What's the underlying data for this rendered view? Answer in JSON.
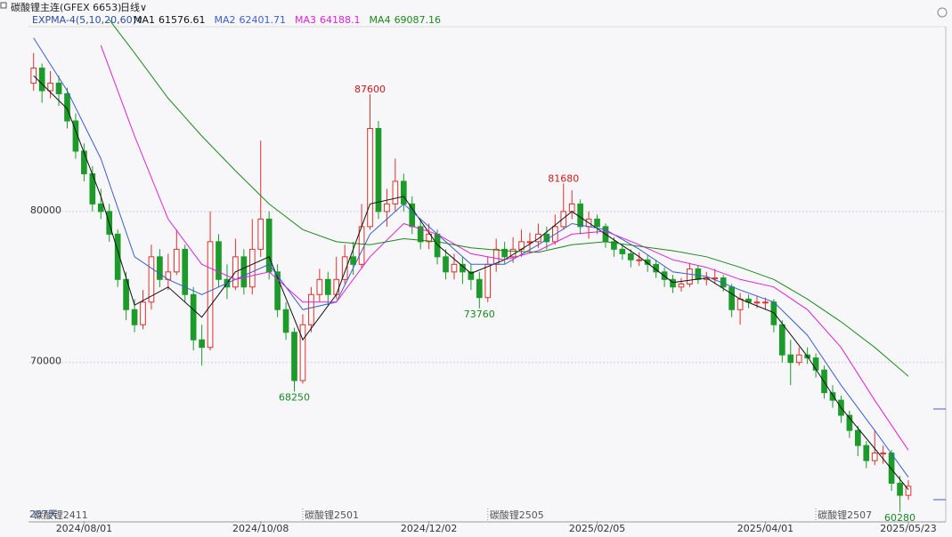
{
  "chart_data": {
    "type": "candlestick",
    "title": "碳酸锂主连(GFEX 6653)",
    "period": "日线∨",
    "indicator": "EXPMA-4(5,10,20,60)∨",
    "days_label": "207天",
    "categories": [
      null,
      null,
      null,
      null,
      null,
      null,
      "2024/08/01",
      null,
      null,
      null,
      null,
      null,
      null,
      null,
      null,
      null,
      null,
      null,
      null,
      null,
      null,
      null,
      null,
      null,
      null,
      null,
      null,
      "2024/10/08",
      null,
      null,
      null,
      null,
      null,
      null,
      null,
      null,
      null,
      null,
      null,
      null,
      null,
      null,
      null,
      null,
      null,
      null,
      null,
      "2024/12/02",
      null,
      null,
      null,
      null,
      null,
      null,
      null,
      null,
      null,
      null,
      null,
      null,
      null,
      null,
      null,
      null,
      null,
      null,
      null,
      "2025/02/05",
      null,
      null,
      null,
      null,
      null,
      null,
      null,
      null,
      null,
      null,
      null,
      null,
      null,
      null,
      null,
      null,
      null,
      null,
      null,
      "2025/04/01",
      null,
      null,
      null,
      null,
      null,
      null,
      null,
      null,
      null,
      null,
      null,
      null,
      null,
      null,
      null,
      null,
      "2025/05/23"
    ],
    "open": [
      88500,
      89500,
      88000,
      88500,
      87800,
      86000,
      84000,
      82500,
      80500,
      80000,
      78500,
      75500,
      73500,
      72500,
      74000,
      77000,
      75500,
      76000,
      77500,
      74500,
      71500,
      71000,
      78000,
      75500,
      75000,
      77000,
      75000,
      77500,
      79500,
      76000,
      73500,
      72000,
      68800,
      72500,
      74500,
      75500,
      74500,
      75500,
      77000,
      76500,
      79000,
      85500,
      80000,
      80500,
      82000,
      80500,
      79000,
      78000,
      78500,
      77000,
      76000,
      76500,
      76000,
      75500,
      74300,
      76500,
      77500,
      77000,
      77500,
      78000,
      78000,
      78500,
      78000,
      79000,
      80000,
      80500,
      79000,
      79500,
      79000,
      78000,
      77500,
      77200,
      76800,
      76800,
      76500,
      76000,
      75500,
      75000,
      75200,
      76200,
      75500,
      75600,
      75600,
      75000,
      73500,
      74200,
      74000,
      74000,
      74000,
      72500,
      70500,
      70000,
      70500,
      70300,
      69500,
      68000,
      67500,
      66500,
      65500,
      64500,
      63500,
      64000,
      64000,
      62000,
      61200
    ],
    "high": [
      90500,
      89800,
      89300,
      89000,
      88200,
      86500,
      84500,
      83000,
      81500,
      80500,
      78800,
      76000,
      74200,
      74800,
      77800,
      77500,
      77200,
      78800,
      77800,
      75000,
      72500,
      80000,
      78500,
      76500,
      78200,
      77500,
      79500,
      84700,
      80000,
      76500,
      74000,
      72300,
      73200,
      75000,
      76200,
      76000,
      77000,
      77800,
      78000,
      80500,
      87600,
      86000,
      81500,
      83500,
      82500,
      81000,
      79500,
      79200,
      78800,
      77500,
      77200,
      77000,
      76500,
      76000,
      77000,
      78200,
      78000,
      78300,
      78800,
      78600,
      79200,
      79000,
      79800,
      81680,
      81400,
      80800,
      80000,
      79800,
      79200,
      78300,
      77800,
      77500,
      77300,
      77100,
      76800,
      76300,
      75800,
      75600,
      76600,
      76400,
      76000,
      76200,
      75800,
      75200,
      74600,
      74500,
      74400,
      74300,
      74200,
      72800,
      71500,
      71000,
      71000,
      70600,
      69800,
      68500,
      67800,
      66800,
      65800,
      64800,
      65500,
      64500,
      64200,
      62500,
      62200
    ],
    "low": [
      88000,
      87200,
      87500,
      87000,
      85500,
      83500,
      82000,
      80000,
      79500,
      78000,
      75000,
      72800,
      72000,
      72200,
      73500,
      75000,
      74800,
      75800,
      74000,
      70800,
      69800,
      70800,
      75000,
      74200,
      74800,
      74500,
      74500,
      77000,
      75500,
      73000,
      71500,
      68250,
      68600,
      72000,
      74000,
      73800,
      74200,
      75200,
      75800,
      76200,
      78800,
      79500,
      79000,
      80000,
      80000,
      78500,
      77500,
      77500,
      76500,
      75500,
      75500,
      75200,
      74800,
      73760,
      74000,
      76000,
      76500,
      76600,
      77000,
      77300,
      77600,
      77500,
      77800,
      78800,
      79500,
      78500,
      78200,
      78500,
      77600,
      77000,
      76800,
      76300,
      76400,
      76000,
      75600,
      75000,
      74600,
      74700,
      75000,
      75200,
      75100,
      75200,
      74700,
      73000,
      72500,
      73600,
      73600,
      73500,
      72000,
      70000,
      68500,
      69800,
      69900,
      69000,
      67600,
      67000,
      66000,
      65000,
      63800,
      63000,
      63200,
      63300,
      61500,
      60280,
      60900
    ],
    "close": [
      89500,
      88000,
      88500,
      87800,
      86000,
      84000,
      82500,
      80500,
      80000,
      78500,
      75500,
      73500,
      72500,
      74000,
      77000,
      75500,
      76000,
      77500,
      74500,
      71500,
      71000,
      78000,
      75500,
      75000,
      77000,
      75000,
      77500,
      79500,
      76000,
      73500,
      72000,
      68800,
      72500,
      74500,
      75500,
      74500,
      75500,
      77000,
      76500,
      79000,
      85500,
      80000,
      80500,
      82000,
      80500,
      79000,
      78000,
      78500,
      77000,
      76000,
      76500,
      76000,
      75500,
      74300,
      76500,
      77500,
      77000,
      77500,
      78000,
      78000,
      78500,
      78000,
      79000,
      80000,
      80500,
      79000,
      79500,
      79000,
      78000,
      77500,
      77200,
      76800,
      76800,
      76500,
      76000,
      75500,
      75000,
      75200,
      76200,
      75500,
      75600,
      75600,
      75000,
      73500,
      74200,
      74000,
      74000,
      74000,
      72500,
      70500,
      70000,
      70500,
      70300,
      69500,
      68000,
      67500,
      66500,
      65500,
      64500,
      63500,
      64000,
      64000,
      62000,
      61200,
      61800
    ],
    "up_color": "#e0302a",
    "down_color": "#1c9a2a",
    "series": [
      {
        "name": "MA1",
        "last": 61576.61,
        "color": "#111111",
        "x": [
          0,
          4,
          8,
          12,
          16,
          20,
          24,
          28,
          32,
          36,
          40,
          44,
          48,
          52,
          56,
          60,
          64,
          68,
          72,
          76,
          80,
          84,
          88,
          92,
          96,
          100,
          104
        ],
        "values": [
          89000,
          86800,
          81000,
          73800,
          75000,
          73000,
          76000,
          77000,
          71500,
          74500,
          80500,
          81000,
          77800,
          75900,
          76800,
          78200,
          80000,
          78500,
          77000,
          75300,
          75600,
          74200,
          73300,
          70400,
          67000,
          64300,
          61576.61
        ]
      },
      {
        "name": "MA2",
        "last": 62401.71,
        "color": "#3a5fcd",
        "x": [
          0,
          4,
          8,
          12,
          16,
          20,
          24,
          28,
          32,
          36,
          40,
          44,
          48,
          52,
          56,
          60,
          64,
          68,
          72,
          76,
          80,
          84,
          88,
          92,
          96,
          100,
          104
        ],
        "values": [
          91500,
          88000,
          83500,
          77000,
          75500,
          74500,
          75500,
          76500,
          73500,
          74000,
          78500,
          80500,
          78500,
          76500,
          76500,
          77800,
          79200,
          78800,
          77500,
          76000,
          75700,
          74800,
          74000,
          71800,
          68500,
          65500,
          62401.71
        ]
      },
      {
        "name": "MA3",
        "last": 64188.1,
        "color": "#e020d8",
        "x": [
          8,
          12,
          16,
          20,
          24,
          28,
          32,
          36,
          40,
          44,
          48,
          52,
          56,
          60,
          64,
          68,
          72,
          76,
          80,
          84,
          88,
          92,
          96,
          100,
          104
        ],
        "values": [
          91000,
          85000,
          79500,
          76500,
          75500,
          76000,
          74000,
          74000,
          77000,
          79200,
          78500,
          77200,
          76800,
          77400,
          78500,
          78700,
          77800,
          76800,
          76300,
          75500,
          75000,
          73500,
          71000,
          67500,
          64188.1
        ]
      },
      {
        "name": "MA4",
        "last": 69087.16,
        "color": "#1a8a1a",
        "x": [
          9,
          12,
          16,
          20,
          24,
          28,
          32,
          36,
          40,
          44,
          48,
          52,
          56,
          60,
          64,
          68,
          72,
          76,
          80,
          84,
          88,
          92,
          96,
          100,
          104
        ],
        "values": [
          92700,
          90500,
          87500,
          85000,
          82700,
          80500,
          78800,
          78000,
          77800,
          78200,
          78000,
          77600,
          77400,
          77300,
          77800,
          78000,
          77700,
          77400,
          77000,
          76300,
          75500,
          74200,
          72700,
          71000,
          69087.16
        ]
      }
    ],
    "annotations": [
      {
        "index": 40,
        "value": 87600,
        "side": "high"
      },
      {
        "index": 63,
        "value": 81680,
        "side": "high"
      },
      {
        "index": 53,
        "value": 73760,
        "side": "low"
      },
      {
        "index": 31,
        "value": 68250,
        "side": "low"
      },
      {
        "index": 103,
        "value": 60280,
        "side": "low"
      }
    ],
    "contracts": [
      {
        "index": 0,
        "label": "碳酸锂2411"
      },
      {
        "index": 32,
        "label": "碳酸锂2501"
      },
      {
        "index": 54,
        "label": "碳酸锂2505"
      },
      {
        "index": 93,
        "label": "碳酸锂2507"
      }
    ],
    "ylim": [
      59500,
      92950
    ],
    "yticks": [
      70000,
      80000
    ],
    "grid": true
  }
}
